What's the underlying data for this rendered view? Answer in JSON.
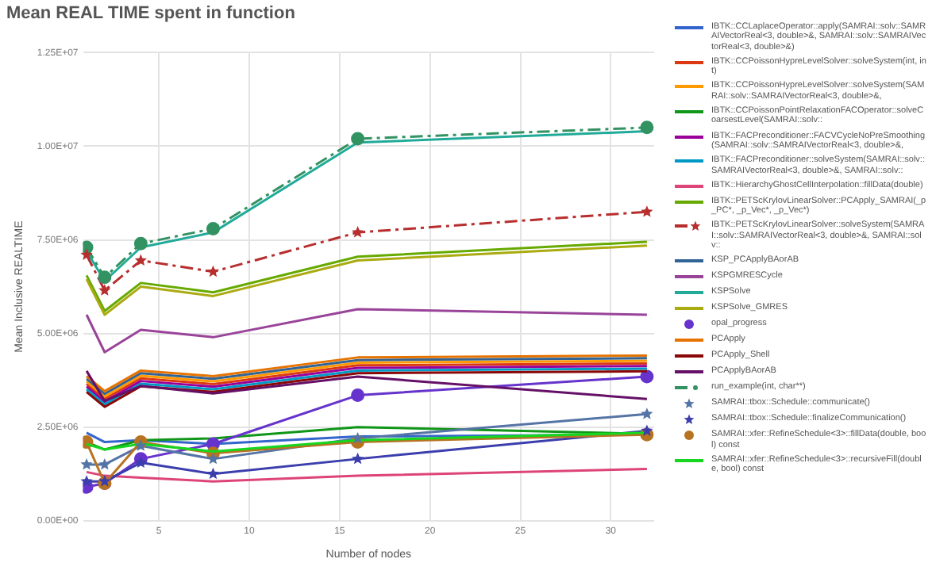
{
  "chart_data": {
    "type": "line",
    "title": "Mean REAL TIME spent in function",
    "xlabel": "Number of nodes",
    "ylabel": "Mean Inclusive REALTIME",
    "x": [
      1,
      2,
      4,
      8,
      16,
      32
    ],
    "xlim": [
      0.8,
      32.4
    ],
    "xticks": [
      5,
      10,
      15,
      20,
      25,
      30
    ],
    "ylim": [
      0,
      12500000
    ],
    "yticks": [
      {
        "value": 0,
        "label": "0.00E+00"
      },
      {
        "value": 2500000,
        "label": "2.50E+06"
      },
      {
        "value": 5000000,
        "label": "5.00E+06"
      },
      {
        "value": 7500000,
        "label": "7.50E+06"
      },
      {
        "value": 10000000,
        "label": "1.00E+07"
      },
      {
        "value": 12500000,
        "label": "1.25E+07"
      }
    ],
    "grid": true,
    "legend": "right",
    "marker": "none",
    "line_style": "solid",
    "series": [
      {
        "name": "IBTK::CCLaplaceOperator::apply(SAMRAI::solv::SAMRAIVectorReal<3, double>&, SAMRAI::solv::SAMRAIVectorReal<3, double>&)",
        "color": "#3366cc",
        "values": [
          2350000,
          2100000,
          2150000,
          2050000,
          2250000,
          2300000
        ]
      },
      {
        "name": "IBTK::CCPoissonHypreLevelSolver::solveSystem(int, int)",
        "color": "#dc3912",
        "values": [
          3650000,
          3250000,
          3800000,
          3650000,
          4150000,
          4200000
        ]
      },
      {
        "name": "IBTK::CCPoissonHypreLevelSolver::solveSystem(SAMRAI::solv::SAMRAIVectorReal<3, double>&,",
        "color": "#ff9900",
        "values": [
          3720000,
          3320000,
          3870000,
          3720000,
          4220000,
          4270000
        ]
      },
      {
        "name": "IBTK::CCPoissonPointRelaxationFACOperator::solveCoarsestLevel(SAMRAI::solv::",
        "color": "#109618",
        "values": [
          2100000,
          1900000,
          2150000,
          2200000,
          2500000,
          2320000
        ]
      },
      {
        "name": "IBTK::FACPreconditioner::FACVCycleNoPreSmoothing(SAMRAI::solv::SAMRAIVectorReal<3, double>&,",
        "color": "#990099",
        "values": [
          3580000,
          3180000,
          3730000,
          3580000,
          4080000,
          4130000
        ]
      },
      {
        "name": "IBTK::FACPreconditioner::solveSystem(SAMRAI::solv::SAMRAIVectorReal<3, double>&, SAMRAI::solv::",
        "color": "#0099c6",
        "values": [
          3510000,
          3110000,
          3660000,
          3510000,
          4010000,
          4060000
        ]
      },
      {
        "name": "IBTK::HierarchyGhostCellInterpolation::fillData(double)",
        "color": "#dd4477",
        "values": [
          1300000,
          1200000,
          1150000,
          1050000,
          1200000,
          1380000
        ]
      },
      {
        "name": "IBTK::PETScKrylovLinearSolver::PCApply_SAMRAI(_p_PC*, _p_Vec*, _p_Vec*)",
        "color": "#66aa00",
        "values": [
          6550000,
          5600000,
          6350000,
          6100000,
          7050000,
          7450000
        ]
      },
      {
        "name": "IBTK::PETScKrylovLinearSolver::solveSystem(SAMRAI::solv::SAMRAIVectorReal<3, double>&, SAMRAI::solv::",
        "color": "#b82e2e",
        "marker": "star",
        "line_style": "dashed",
        "values": [
          7100000,
          6150000,
          6950000,
          6650000,
          7700000,
          8250000
        ]
      },
      {
        "name": "KSP_PCApplyBAorAB",
        "color": "#316395",
        "values": [
          3790000,
          3390000,
          3940000,
          3790000,
          4290000,
          4340000
        ]
      },
      {
        "name": "KSPGMRESCycle",
        "color": "#994499",
        "values": [
          5500000,
          4500000,
          5100000,
          4900000,
          5650000,
          5500000
        ]
      },
      {
        "name": "KSPSolve",
        "color": "#22aa99",
        "values": [
          7200000,
          6400000,
          7300000,
          7700000,
          10100000,
          10400000
        ]
      },
      {
        "name": "KSPSolve_GMRES",
        "color": "#aaaa11",
        "values": [
          6450000,
          5500000,
          6250000,
          6000000,
          6950000,
          7350000
        ]
      },
      {
        "name": "opal_progress",
        "color": "#6633cc",
        "marker": "circle",
        "values": [
          900000,
          1000000,
          1650000,
          2050000,
          3350000,
          3850000
        ]
      },
      {
        "name": "PCApply",
        "color": "#e67300",
        "values": [
          3860000,
          3460000,
          4010000,
          3860000,
          4360000,
          4410000
        ]
      },
      {
        "name": "PCApply_Shell",
        "color": "#8b0707",
        "values": [
          3440000,
          3040000,
          3590000,
          3440000,
          3940000,
          3990000
        ]
      },
      {
        "name": "PCApplyBAorAB",
        "color": "#651067",
        "values": [
          4000000,
          3200000,
          3600000,
          3400000,
          3850000,
          3250000
        ]
      },
      {
        "name": "run_example(int, char**)",
        "color": "#329262",
        "marker": "circle",
        "line_style": "dashed",
        "values": [
          7300000,
          6500000,
          7400000,
          7800000,
          10200000,
          10500000
        ]
      },
      {
        "name": "SAMRAI::tbox::Schedule::communicate()",
        "color": "#5574a6",
        "marker": "star",
        "values": [
          1500000,
          1500000,
          2000000,
          1650000,
          2200000,
          2850000
        ]
      },
      {
        "name": "SAMRAI::tbox::Schedule::finalizeCommunication()",
        "color": "#3b3eac",
        "marker": "star",
        "values": [
          1050000,
          1050000,
          1550000,
          1250000,
          1650000,
          2400000
        ]
      },
      {
        "name": "SAMRAI::xfer::RefineSchedule<3>::fillData(double, bool) const",
        "color": "#b77322",
        "marker": "circle",
        "values": [
          2100000,
          1000000,
          2100000,
          1800000,
          2100000,
          2300000
        ]
      },
      {
        "name": "SAMRAI::xfer::RefineSchedule<3>::recursiveFill(double, bool) const",
        "color": "#16d620",
        "values": [
          2050000,
          1900000,
          2050000,
          1850000,
          2150000,
          2350000
        ]
      }
    ]
  }
}
